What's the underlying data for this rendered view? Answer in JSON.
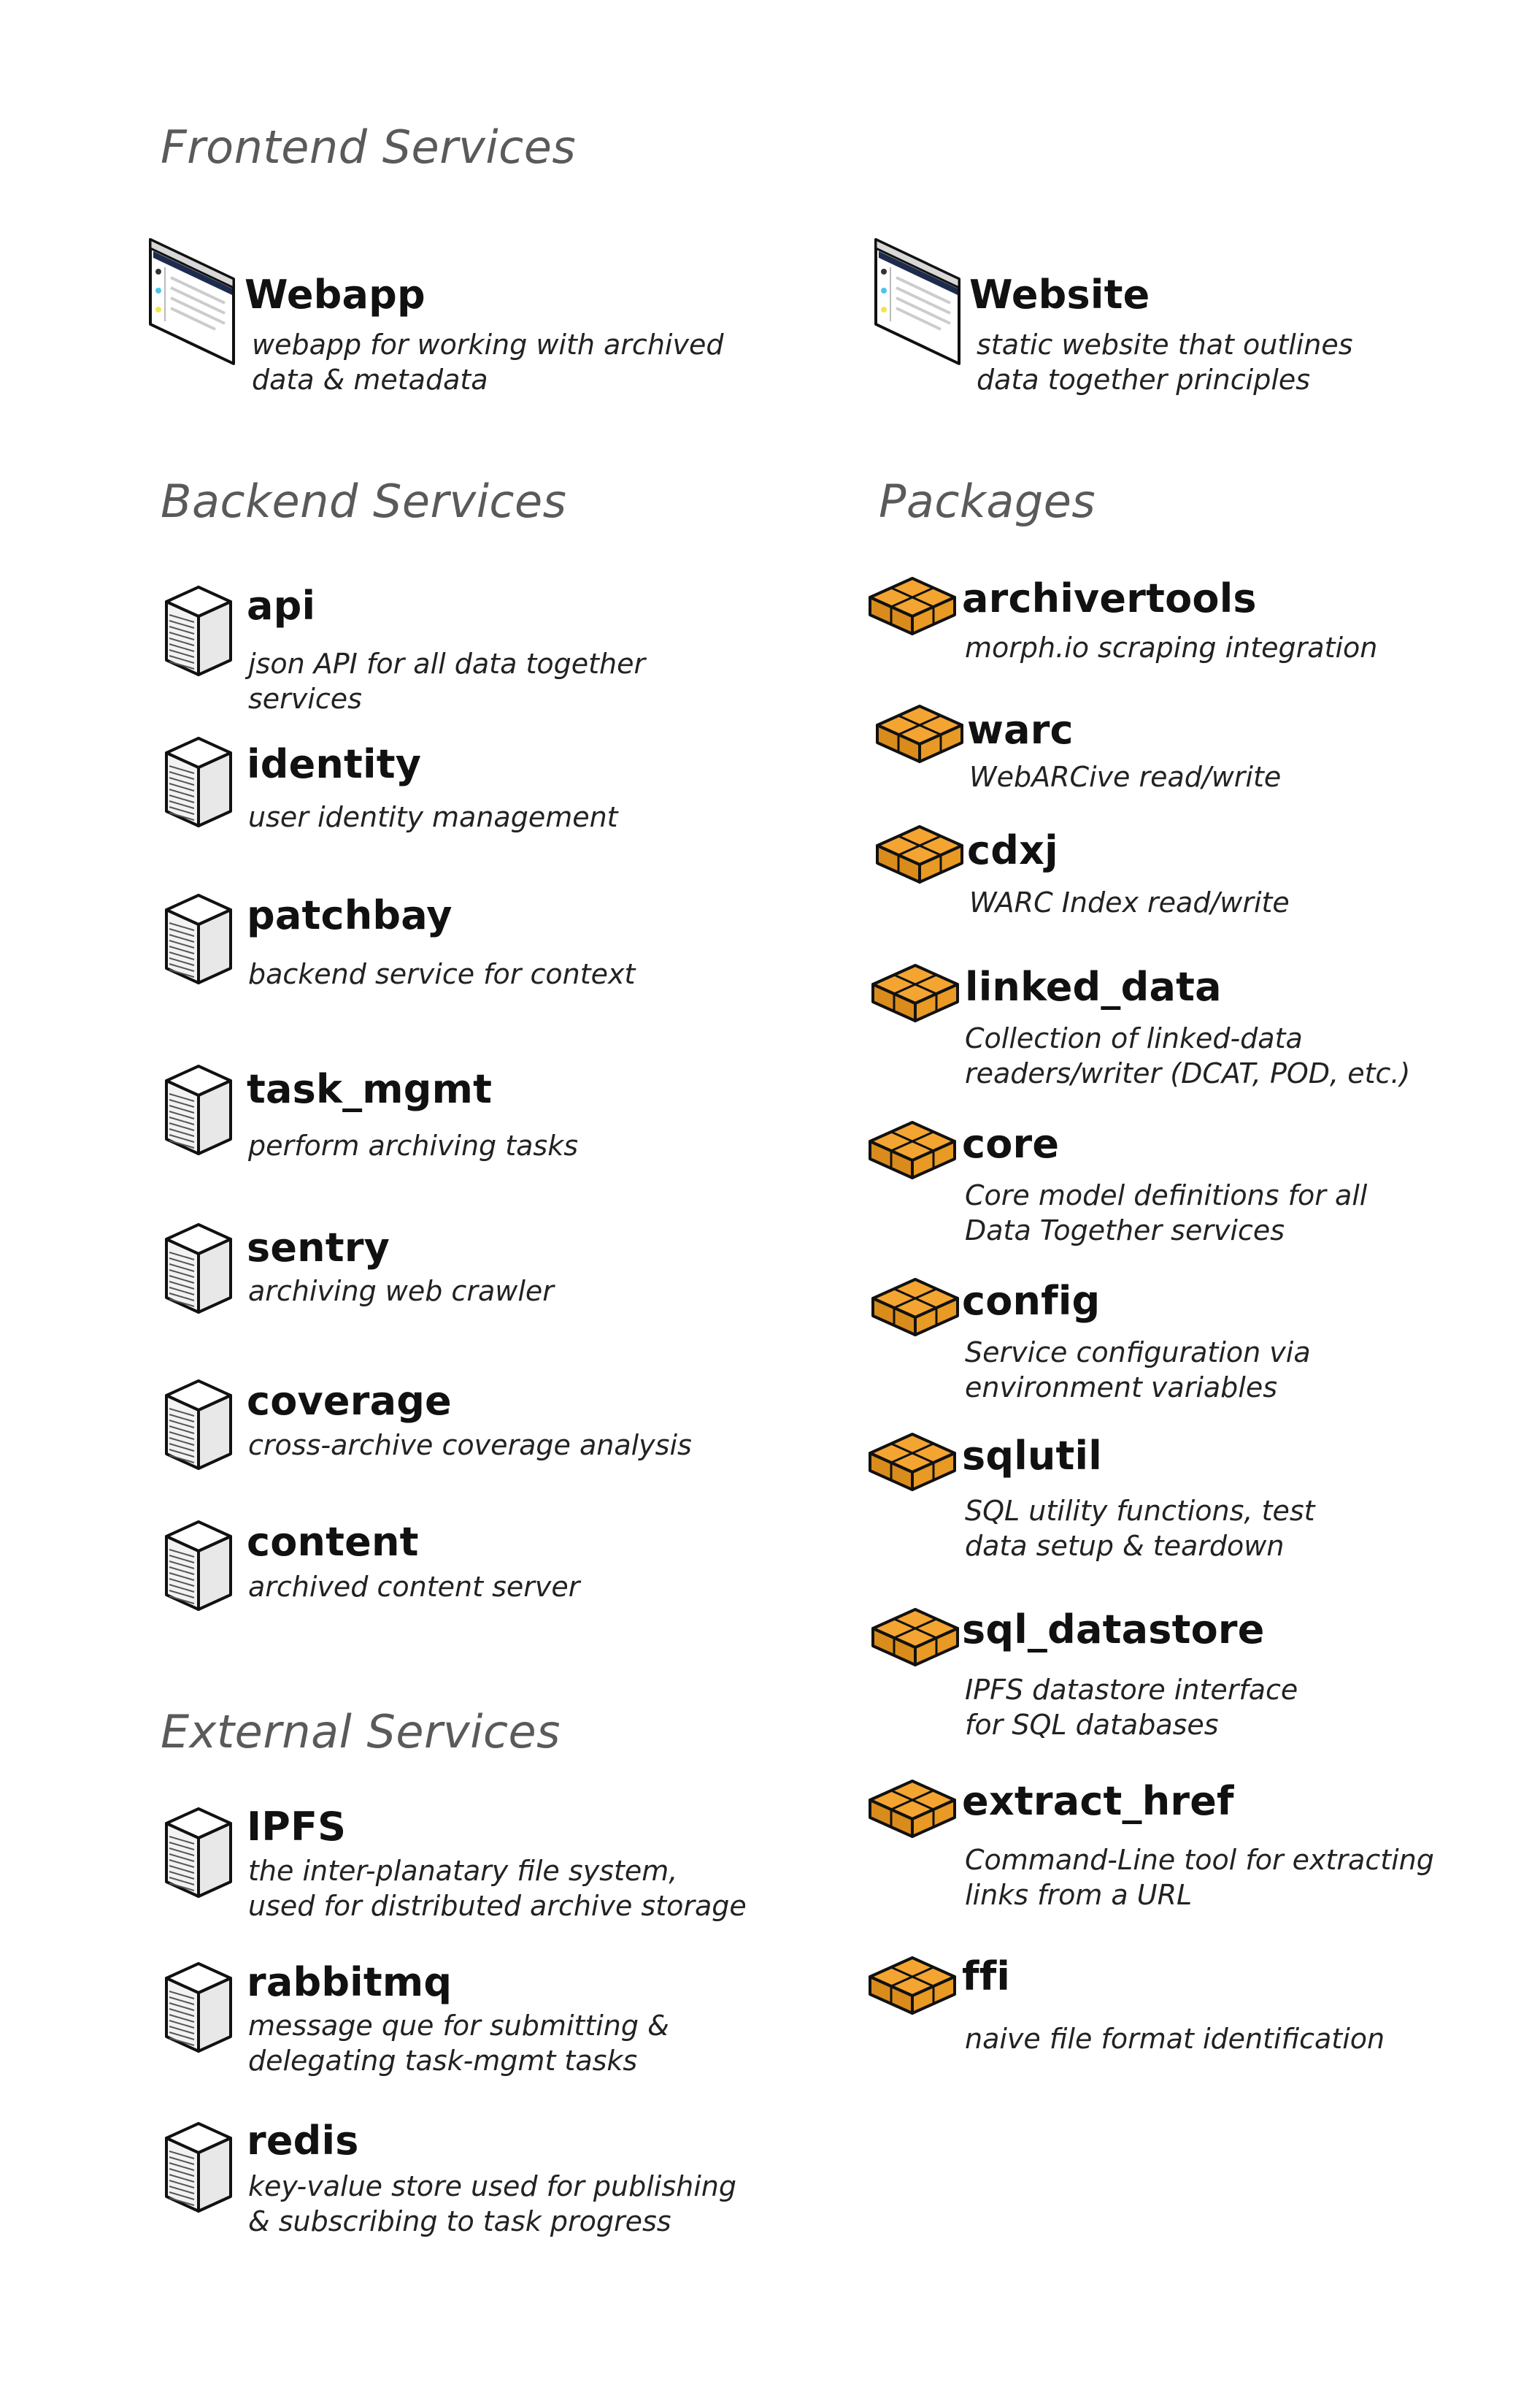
{
  "sections": {
    "frontend": {
      "title": "Frontend Services"
    },
    "backend": {
      "title": "Backend Services"
    },
    "packages": {
      "title": "Packages"
    },
    "external": {
      "title": "External Services"
    }
  },
  "icons": {
    "browser": "browser-window-icon",
    "server": "server-icon",
    "package": "package-icon",
    "package_color": "#F4A531",
    "server_color": "#e8e8e8",
    "browser_accent": "#1d2b4f"
  },
  "frontend": [
    {
      "name": "Webapp",
      "desc": [
        "webapp for working with archived",
        "data & metadata"
      ]
    },
    {
      "name": "Website",
      "desc": [
        "static website that outlines",
        "data together principles"
      ]
    }
  ],
  "backend": [
    {
      "name": "api",
      "desc": [
        "json API for all data together",
        "services"
      ]
    },
    {
      "name": "identity",
      "desc": [
        "user identity management"
      ]
    },
    {
      "name": "patchbay",
      "desc": [
        "backend service for context"
      ]
    },
    {
      "name": "task_mgmt",
      "desc": [
        "perform archiving tasks"
      ]
    },
    {
      "name": "sentry",
      "desc": [
        "archiving web crawler"
      ]
    },
    {
      "name": "coverage",
      "desc": [
        "cross-archive coverage analysis"
      ]
    },
    {
      "name": "content",
      "desc": [
        "archived content server"
      ]
    }
  ],
  "external": [
    {
      "name": "IPFS",
      "desc": [
        "the inter-planatary file system,",
        "used for distributed archive storage"
      ]
    },
    {
      "name": "rabbitmq",
      "desc": [
        "message que for submitting &",
        "delegating task-mgmt tasks"
      ]
    },
    {
      "name": "redis",
      "desc": [
        "key-value store used for publishing",
        "& subscribing to task progress"
      ]
    }
  ],
  "packages": [
    {
      "name": "archivertools",
      "desc": [
        "morph.io scraping integration"
      ]
    },
    {
      "name": "warc",
      "desc": [
        "WebARCive read/write"
      ]
    },
    {
      "name": "cdxj",
      "desc": [
        "WARC Index read/write"
      ]
    },
    {
      "name": "linked_data",
      "desc": [
        "Collection of linked-data",
        "readers/writer (DCAT, POD, etc.)"
      ]
    },
    {
      "name": "core",
      "desc": [
        "Core model definitions for all",
        "Data Together services"
      ]
    },
    {
      "name": "config",
      "desc": [
        "Service configuration via",
        "environment variables"
      ]
    },
    {
      "name": "sqlutil",
      "desc": [
        "SQL utility functions, test",
        "data setup & teardown"
      ]
    },
    {
      "name": "sql_datastore",
      "desc": [
        "IPFS datastore interface",
        "for SQL databases"
      ]
    },
    {
      "name": "extract_href",
      "desc": [
        "Command-Line tool for extracting",
        "links from a URL"
      ]
    },
    {
      "name": "ffi",
      "desc": [
        "naive file format identification"
      ]
    }
  ]
}
